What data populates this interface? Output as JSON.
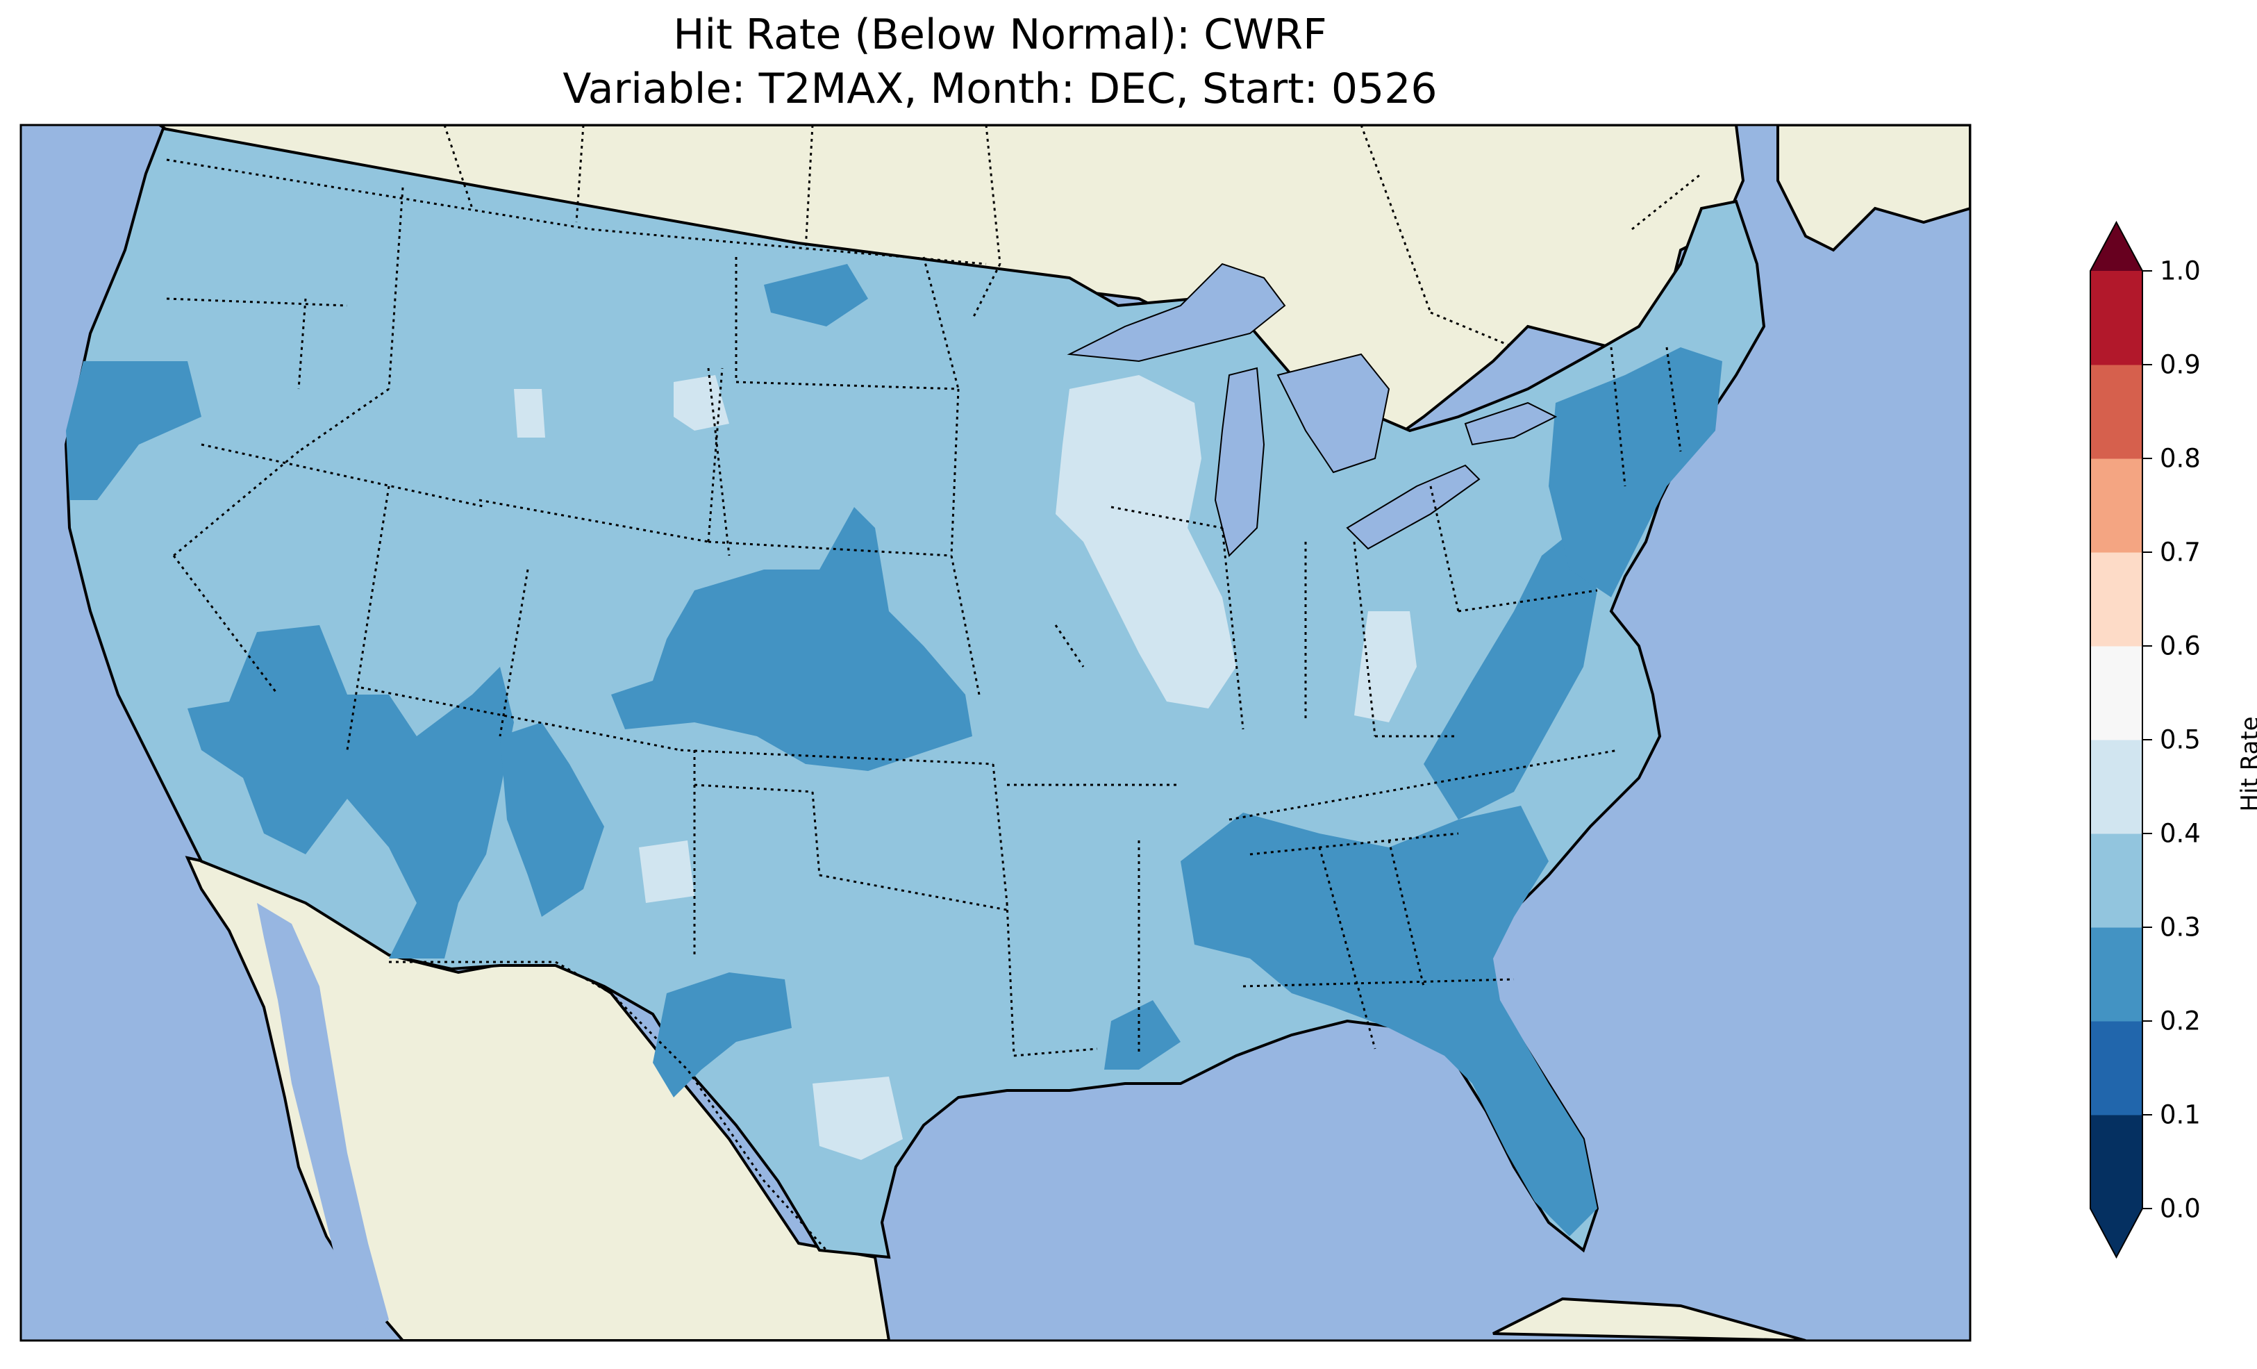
{
  "title": {
    "line1": "Hit Rate (Below Normal): CWRF",
    "line2": "Variable: T2MAX, Month: DEC, Start: 0526"
  },
  "map": {
    "ocean_color": "#97b6e1",
    "land_color": "#efefdb",
    "coastline_color": "#000000"
  },
  "colorbar": {
    "label": "Hit Rate",
    "extend": "both",
    "levels": [
      0.0,
      0.1,
      0.2,
      0.3,
      0.4,
      0.5,
      0.6,
      0.7,
      0.8,
      0.9,
      1.0
    ],
    "tick_labels": [
      "0.0",
      "0.1",
      "0.2",
      "0.3",
      "0.4",
      "0.5",
      "0.6",
      "0.7",
      "0.8",
      "0.9",
      "1.0"
    ],
    "colors": [
      "#053061",
      "#2166ac",
      "#4393c3",
      "#92c5de",
      "#d1e5f0",
      "#f7f7f7",
      "#fddbc7",
      "#f4a582",
      "#d6604d",
      "#b2182b"
    ],
    "under_color": "#053061",
    "over_color": "#67001f"
  },
  "regions": [
    {
      "name": "Pacific Northwest coast",
      "value": 0.25
    },
    {
      "name": "Northern Plains",
      "value": 0.35
    },
    {
      "name": "Colorado-Kansas",
      "value": 0.25
    },
    {
      "name": "Wisconsin-Illinois",
      "value": 0.45
    },
    {
      "name": "Southeast",
      "value": 0.25
    },
    {
      "name": "Florida",
      "value": 0.25
    },
    {
      "name": "Northeast",
      "value": 0.25
    },
    {
      "name": "South Texas",
      "value": 0.45
    }
  ]
}
